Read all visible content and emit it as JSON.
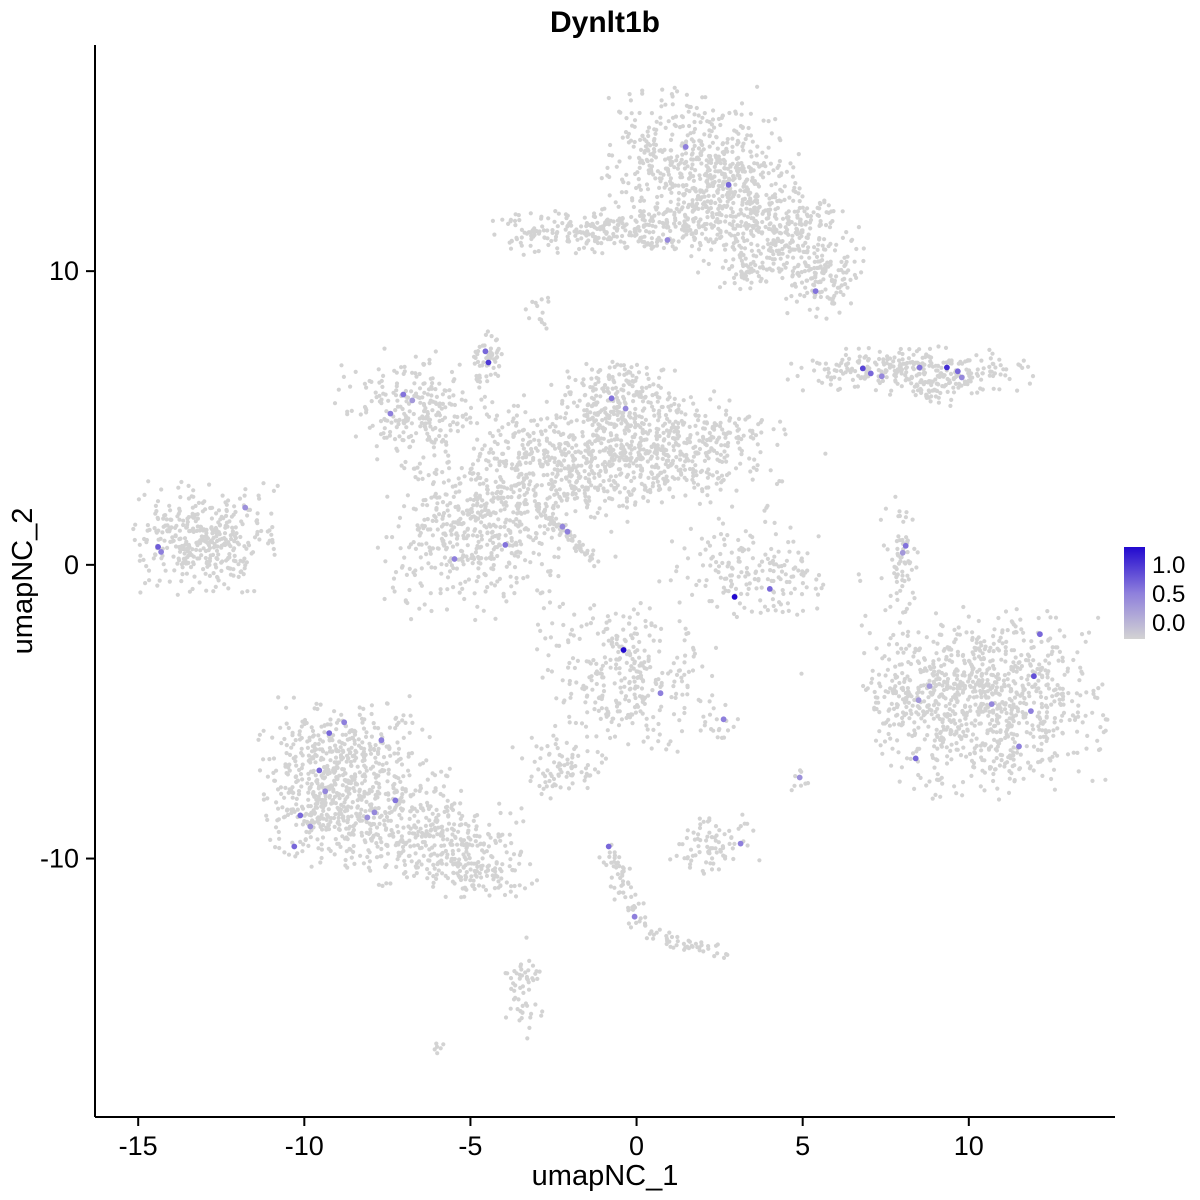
{
  "title": "Dynlt1b",
  "axes": {
    "x": {
      "label": "umapNC_1",
      "ticks": [
        -15,
        -10,
        -5,
        0,
        5,
        10
      ],
      "range": [
        -16.3,
        14.4
      ]
    },
    "y": {
      "label": "umapNC_2",
      "ticks": [
        10,
        0,
        -10
      ],
      "range": [
        -18.8,
        17.7
      ]
    }
  },
  "legend": {
    "tick_labels": [
      "1.0",
      "0.5",
      "0.0"
    ],
    "color_high": "#2209CF",
    "color_mid": "#8E7FDC",
    "color_low": "#D3D3D3"
  },
  "chart_data": {
    "type": "scatter",
    "title": "Dynlt1b",
    "xlabel": "umapNC_1",
    "ylabel": "umapNC_2",
    "xlim": [
      -16.3,
      14.4
    ],
    "ylim": [
      -18.8,
      17.7
    ],
    "grid": false,
    "legend_position": "right",
    "point_color_zero": "#D3D3D3",
    "color_scale": {
      "low": "#D3D3D3",
      "mid": "#8E7FDC",
      "high": "#2209CF",
      "domain": [
        0.0,
        1.0
      ]
    },
    "clusters": [
      {
        "x": 1.7,
        "y": 13.6,
        "sx": 1.25,
        "sy": 1.25,
        "n": 520
      },
      {
        "x": 3.3,
        "y": 12.0,
        "sx": 1.15,
        "sy": 0.95,
        "n": 300
      },
      {
        "x": 4.8,
        "y": 10.9,
        "sx": 0.95,
        "sy": 0.75,
        "n": 210
      },
      {
        "x": 5.5,
        "y": 9.6,
        "sx": 0.55,
        "sy": 0.6,
        "n": 90
      },
      {
        "x": 0.6,
        "y": 11.6,
        "sx": 0.8,
        "sy": 0.5,
        "n": 110
      },
      {
        "x": -2.1,
        "y": 11.3,
        "sx": 1.1,
        "sy": 0.35,
        "n": 140
      },
      {
        "x": -0.9,
        "y": 11.5,
        "sx": 0.45,
        "sy": 0.3,
        "n": 40
      },
      {
        "x": 3.2,
        "y": 10.0,
        "sx": 0.35,
        "sy": 0.3,
        "n": 35
      },
      {
        "x": -3.0,
        "y": 8.6,
        "sx": 0.2,
        "sy": 0.3,
        "n": 14
      },
      {
        "x": -4.5,
        "y": 7.1,
        "sx": 0.28,
        "sy": 0.42,
        "n": 50
      },
      {
        "x": -6.6,
        "y": 5.3,
        "sx": 1.15,
        "sy": 0.95,
        "n": 260
      },
      {
        "x": 8.2,
        "y": 6.6,
        "sx": 1.7,
        "sy": 0.38,
        "n": 300
      },
      {
        "x": 9.0,
        "y": 5.9,
        "sx": 0.5,
        "sy": 0.25,
        "n": 40
      },
      {
        "x": -0.7,
        "y": 5.5,
        "sx": 0.95,
        "sy": 0.7,
        "n": 220
      },
      {
        "x": 1.2,
        "y": 4.0,
        "sx": 1.5,
        "sy": 0.95,
        "n": 430
      },
      {
        "x": -1.2,
        "y": 3.3,
        "sx": 1.1,
        "sy": 0.85,
        "n": 280
      },
      {
        "x": -3.3,
        "y": 3.8,
        "sx": 0.9,
        "sy": 0.9,
        "n": 160
      },
      {
        "x": -4.5,
        "y": 2.0,
        "sx": 1.05,
        "sy": 0.8,
        "n": 200
      },
      {
        "x": -13.0,
        "y": 0.9,
        "sx": 1.0,
        "sy": 0.9,
        "n": 380
      },
      {
        "x": -5.0,
        "y": 0.6,
        "sx": 1.3,
        "sy": 1.25,
        "n": 300
      },
      {
        "x": 3.4,
        "y": -0.3,
        "sx": 1.1,
        "sy": 0.85,
        "n": 170
      },
      {
        "x": 7.9,
        "y": 0.3,
        "sx": 0.28,
        "sy": 0.95,
        "n": 70
      },
      {
        "x": 10.5,
        "y": -4.7,
        "sx": 1.7,
        "sy": 1.5,
        "n": 900
      },
      {
        "x": 8.3,
        "y": -4.3,
        "sx": 0.7,
        "sy": 1.0,
        "n": 90
      },
      {
        "x": -0.3,
        "y": -3.8,
        "sx": 1.25,
        "sy": 1.2,
        "n": 320
      },
      {
        "x": 2.6,
        "y": -5.3,
        "sx": 0.4,
        "sy": 0.3,
        "n": 18
      },
      {
        "x": -8.8,
        "y": -6.2,
        "sx": 1.25,
        "sy": 0.8,
        "n": 260
      },
      {
        "x": -9.5,
        "y": -8.0,
        "sx": 0.8,
        "sy": 1.0,
        "n": 280
      },
      {
        "x": -7.6,
        "y": -8.4,
        "sx": 1.2,
        "sy": 1.0,
        "n": 300
      },
      {
        "x": -5.7,
        "y": -9.7,
        "sx": 1.2,
        "sy": 0.75,
        "n": 240
      },
      {
        "x": -4.5,
        "y": -10.4,
        "sx": 0.7,
        "sy": 0.5,
        "n": 80
      },
      {
        "x": -2.4,
        "y": -6.9,
        "sx": 0.7,
        "sy": 0.5,
        "n": 80
      },
      {
        "x": 2.4,
        "y": -9.5,
        "sx": 0.75,
        "sy": 0.5,
        "n": 80
      },
      {
        "x": -3.4,
        "y": -14.5,
        "sx": 0.3,
        "sy": 0.85,
        "n": 55
      },
      {
        "x": -6.0,
        "y": -16.4,
        "sx": 0.18,
        "sy": 0.12,
        "n": 6
      },
      {
        "x": 4.9,
        "y": -7.3,
        "sx": 0.25,
        "sy": 0.25,
        "n": 8
      },
      {
        "x": 0.5,
        "y": 0.5,
        "sx": 3.0,
        "sy": 2.5,
        "n": 35
      }
    ],
    "streaks": [
      {
        "x1": -2.9,
        "y1": 1.9,
        "x2": -1.2,
        "y2": 0.1,
        "n": 70,
        "jitter": 0.1
      },
      {
        "x1": -0.8,
        "y1": -9.8,
        "x2": 0.0,
        "y2": -12.4,
        "n": 60,
        "jitter": 0.18
      },
      {
        "x1": 0.3,
        "y1": -12.6,
        "x2": 2.7,
        "y2": -13.2,
        "n": 45,
        "jitter": 0.15
      }
    ],
    "expressing_points": [
      {
        "x": 1.48,
        "y": 14.23,
        "v": 0.5
      },
      {
        "x": 2.77,
        "y": 12.94,
        "v": 0.6
      },
      {
        "x": 0.93,
        "y": 11.06,
        "v": 0.45
      },
      {
        "x": 5.39,
        "y": 9.32,
        "v": 0.55
      },
      {
        "x": -4.55,
        "y": 7.27,
        "v": 0.6
      },
      {
        "x": -4.46,
        "y": 6.89,
        "v": 0.8
      },
      {
        "x": -7.02,
        "y": 5.8,
        "v": 0.55
      },
      {
        "x": -7.41,
        "y": 5.15,
        "v": 0.5
      },
      {
        "x": -6.75,
        "y": 5.6,
        "v": 0.35
      },
      {
        "x": -0.75,
        "y": 5.67,
        "v": 0.55
      },
      {
        "x": -0.33,
        "y": 5.32,
        "v": 0.45
      },
      {
        "x": 6.81,
        "y": 6.69,
        "v": 0.75
      },
      {
        "x": 7.05,
        "y": 6.52,
        "v": 0.6
      },
      {
        "x": 7.38,
        "y": 6.42,
        "v": 0.45
      },
      {
        "x": 8.52,
        "y": 6.72,
        "v": 0.55
      },
      {
        "x": 9.34,
        "y": 6.72,
        "v": 0.85
      },
      {
        "x": 9.67,
        "y": 6.59,
        "v": 0.6
      },
      {
        "x": 9.79,
        "y": 6.38,
        "v": 0.45
      },
      {
        "x": -14.4,
        "y": 0.61,
        "v": 0.65
      },
      {
        "x": -14.31,
        "y": 0.44,
        "v": 0.5
      },
      {
        "x": -11.78,
        "y": 1.95,
        "v": 0.4
      },
      {
        "x": -5.48,
        "y": 0.2,
        "v": 0.5
      },
      {
        "x": -3.95,
        "y": 0.68,
        "v": 0.55
      },
      {
        "x": -2.23,
        "y": 1.3,
        "v": 0.45
      },
      {
        "x": -2.08,
        "y": 1.13,
        "v": 0.5
      },
      {
        "x": 4.01,
        "y": -0.82,
        "v": 0.6
      },
      {
        "x": 2.95,
        "y": -1.09,
        "v": 1.0
      },
      {
        "x": 8.1,
        "y": 0.65,
        "v": 0.55
      },
      {
        "x": 8.01,
        "y": 0.41,
        "v": 0.35
      },
      {
        "x": 12.14,
        "y": -2.36,
        "v": 0.6
      },
      {
        "x": 11.96,
        "y": -3.79,
        "v": 0.7
      },
      {
        "x": 10.69,
        "y": -4.74,
        "v": 0.45
      },
      {
        "x": 11.87,
        "y": -4.98,
        "v": 0.5
      },
      {
        "x": 11.51,
        "y": -6.18,
        "v": 0.5
      },
      {
        "x": 8.4,
        "y": -6.59,
        "v": 0.6
      },
      {
        "x": 8.49,
        "y": -4.61,
        "v": 0.35
      },
      {
        "x": 8.82,
        "y": -4.13,
        "v": 0.35
      },
      {
        "x": -0.39,
        "y": -2.9,
        "v": 1.0
      },
      {
        "x": 0.72,
        "y": -4.37,
        "v": 0.5
      },
      {
        "x": 2.62,
        "y": -5.26,
        "v": 0.5
      },
      {
        "x": -8.8,
        "y": -5.36,
        "v": 0.5
      },
      {
        "x": -9.25,
        "y": -5.73,
        "v": 0.6
      },
      {
        "x": -7.68,
        "y": -5.97,
        "v": 0.5
      },
      {
        "x": -9.55,
        "y": -7.0,
        "v": 0.6
      },
      {
        "x": -9.37,
        "y": -7.71,
        "v": 0.45
      },
      {
        "x": -10.12,
        "y": -8.53,
        "v": 0.6
      },
      {
        "x": -9.82,
        "y": -8.91,
        "v": 0.4
      },
      {
        "x": -7.89,
        "y": -8.43,
        "v": 0.45
      },
      {
        "x": -7.26,
        "y": -8.02,
        "v": 0.55
      },
      {
        "x": -10.3,
        "y": -9.59,
        "v": 0.6
      },
      {
        "x": -8.1,
        "y": -8.6,
        "v": 0.4
      },
      {
        "x": 4.91,
        "y": -7.24,
        "v": 0.4
      },
      {
        "x": 3.13,
        "y": -9.49,
        "v": 0.5
      },
      {
        "x": -0.84,
        "y": -9.59,
        "v": 0.6
      },
      {
        "x": -0.06,
        "y": -11.98,
        "v": 0.5
      }
    ]
  }
}
